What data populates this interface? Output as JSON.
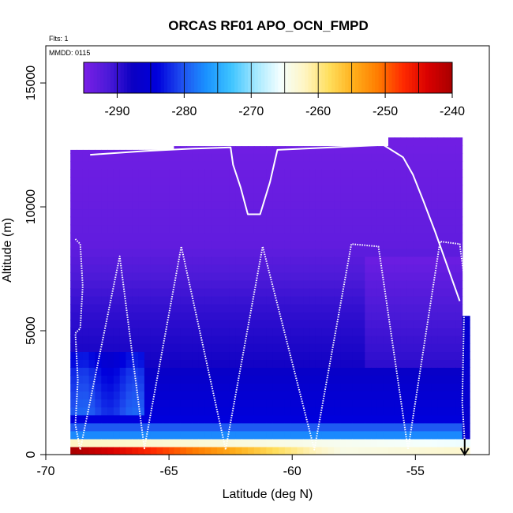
{
  "chart_data": {
    "type": "heatmap",
    "title": "ORCAS RF01 APO_OCN_FMPD",
    "annotation_flts": "Flts: 1",
    "annotation_mmdd": "MMDD: 0115",
    "xlabel": "Latitude (deg N)",
    "ylabel": "Altitude (m)",
    "xlim": [
      -70,
      -52
    ],
    "ylim": [
      0,
      16500
    ],
    "x_ticks": [
      -70,
      -65,
      -60,
      -55
    ],
    "y_ticks": [
      0,
      5000,
      10000,
      15000
    ],
    "colorbar": {
      "range": [
        -295,
        -240
      ],
      "ticks": [
        -290,
        -280,
        -270,
        -260,
        -250,
        -240
      ],
      "colors": [
        "#7a1fe6",
        "#4c1ad8",
        "#0a00c2",
        "#0000dc",
        "#1f4ff0",
        "#1a93ff",
        "#3dc3ff",
        "#a3e8ff",
        "#f4ffff",
        "#fff5c2",
        "#ffde5c",
        "#ffae1a",
        "#ff7a00",
        "#ff2a00",
        "#d90000",
        "#a80000"
      ]
    },
    "column_tops": [
      {
        "lat_range": [
          -69,
          -64.8
        ],
        "top_alt": 12300
      },
      {
        "lat_range": [
          -64.8,
          -56.1
        ],
        "top_alt": 12450
      },
      {
        "lat_range": [
          -56.1,
          -53.1
        ],
        "top_alt": 12800
      },
      {
        "lat_range": [
          -53.1,
          -52.8
        ],
        "top_alt": 5600
      }
    ],
    "flight_track": [
      [
        -68.2,
        12100
      ],
      [
        -66.0,
        12250
      ],
      [
        -64.0,
        12350
      ],
      [
        -62.5,
        12400
      ],
      [
        -62.4,
        11700
      ],
      [
        -62.1,
        10800
      ],
      [
        -61.8,
        9700
      ],
      [
        -61.3,
        9700
      ],
      [
        -60.9,
        11000
      ],
      [
        -60.6,
        12300
      ],
      [
        -58.4,
        12400
      ],
      [
        -56.3,
        12500
      ],
      [
        -55.5,
        12000
      ],
      [
        -55.1,
        11300
      ],
      [
        -54.7,
        10300
      ],
      [
        -54.2,
        9000
      ],
      [
        -53.7,
        7600
      ],
      [
        -53.2,
        6200
      ]
    ],
    "profile_track": [
      [
        -68.8,
        8700
      ],
      [
        -68.6,
        8500
      ],
      [
        -68.5,
        6800
      ],
      [
        -68.6,
        5100
      ],
      [
        -68.8,
        4900
      ],
      [
        -68.7,
        3000
      ],
      [
        -68.8,
        1200
      ],
      [
        -68.6,
        200
      ],
      [
        -67.0,
        8000
      ],
      [
        -66.0,
        250
      ],
      [
        -64.5,
        8400
      ],
      [
        -62.7,
        200
      ],
      [
        -61.2,
        8400
      ],
      [
        -59.1,
        200
      ],
      [
        -57.6,
        8500
      ],
      [
        -56.5,
        8400
      ],
      [
        -55.3,
        200
      ],
      [
        -54.0,
        8600
      ],
      [
        -53.2,
        8500
      ],
      [
        -53.0,
        7000
      ],
      [
        -53.1,
        2100
      ],
      [
        -53.0,
        500
      ]
    ],
    "arrow": {
      "lat": -53.0,
      "alt": 0
    }
  }
}
